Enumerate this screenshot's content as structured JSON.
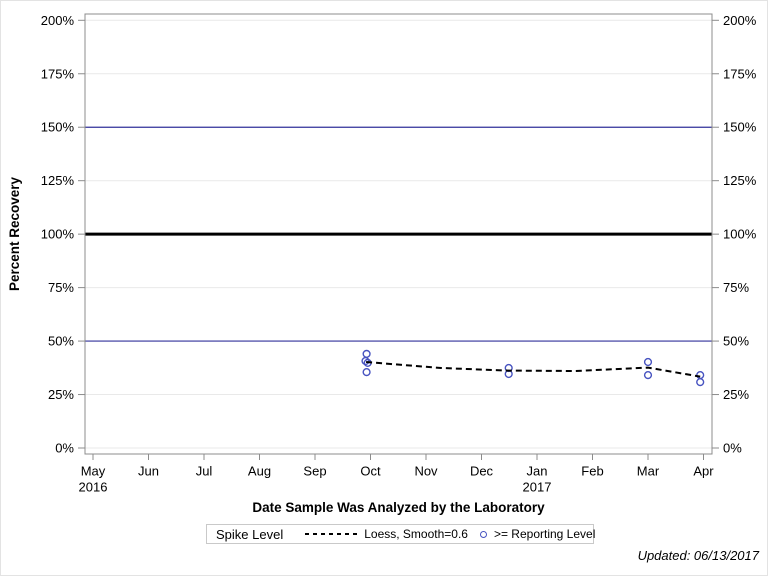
{
  "chart_data": {
    "type": "scatter",
    "title": "",
    "xlabel": "Date Sample Was Analyzed by the Laboratory",
    "ylabel": "Percent Recovery",
    "ylim": [
      0,
      200
    ],
    "y_tick_values": [
      0,
      25,
      50,
      75,
      100,
      125,
      150,
      175,
      200
    ],
    "y_tick_suffix": "%",
    "y_axis_sides": "both",
    "grid": {
      "horizontal": true,
      "color": "#e9e9e9"
    },
    "x_axis": {
      "ticks": [
        {
          "label": "May",
          "year": "2016"
        },
        {
          "label": "Jun"
        },
        {
          "label": "Jul"
        },
        {
          "label": "Aug"
        },
        {
          "label": "Sep"
        },
        {
          "label": "Oct"
        },
        {
          "label": "Nov"
        },
        {
          "label": "Dec"
        },
        {
          "label": "Jan",
          "year": "2017"
        },
        {
          "label": "Feb"
        },
        {
          "label": "Mar"
        },
        {
          "label": "Apr"
        }
      ]
    },
    "reference_lines": [
      {
        "y": 150,
        "color": "#33339c",
        "width": 1.2
      },
      {
        "y": 100,
        "color": "#000000",
        "width": 3
      },
      {
        "y": 50,
        "color": "#33339c",
        "width": 1.2
      }
    ],
    "series": [
      {
        "name": ">= Reporting Level",
        "type": "scatter",
        "marker": "open-circle",
        "color": "#4753c0",
        "points": [
          {
            "x": 4.93,
            "y": 44.0,
            "date": "2016-09-27"
          },
          {
            "x": 4.91,
            "y": 40.7,
            "date": "2016-09-27"
          },
          {
            "x": 4.95,
            "y": 39.8,
            "date": "2016-09-27"
          },
          {
            "x": 4.93,
            "y": 35.5,
            "date": "2016-09-27"
          },
          {
            "x": 7.49,
            "y": 37.4,
            "date": "2016-12-15"
          },
          {
            "x": 7.49,
            "y": 34.6,
            "date": "2016-12-15"
          },
          {
            "x": 10.0,
            "y": 40.2,
            "date": "2017-03-01"
          },
          {
            "x": 10.0,
            "y": 34.1,
            "date": "2017-03-01"
          },
          {
            "x": 10.94,
            "y": 34.1,
            "date": "2017-03-29"
          },
          {
            "x": 10.94,
            "y": 30.8,
            "date": "2017-03-29"
          }
        ]
      },
      {
        "name": "Loess, Smooth=0.6",
        "type": "line",
        "line_style": "dashed",
        "color": "#000000",
        "points": [
          {
            "x": 4.92,
            "y": 40.2
          },
          {
            "x": 6.27,
            "y": 37.4
          },
          {
            "x": 7.49,
            "y": 36.2
          },
          {
            "x": 8.7,
            "y": 36.0
          },
          {
            "x": 10.0,
            "y": 37.6
          },
          {
            "x": 10.94,
            "y": 33.4
          }
        ]
      }
    ],
    "legend": {
      "title": "Spike Level",
      "position": "bottom-center",
      "entries": [
        {
          "label": "Loess, Smooth=0.6",
          "swatch": "dashed-line",
          "color": "#000000"
        },
        {
          "label": ">= Reporting Level",
          "swatch": "open-circle",
          "color": "#4753c0"
        }
      ]
    }
  },
  "footer": {
    "updated_text": "Updated: 06/13/2017"
  }
}
